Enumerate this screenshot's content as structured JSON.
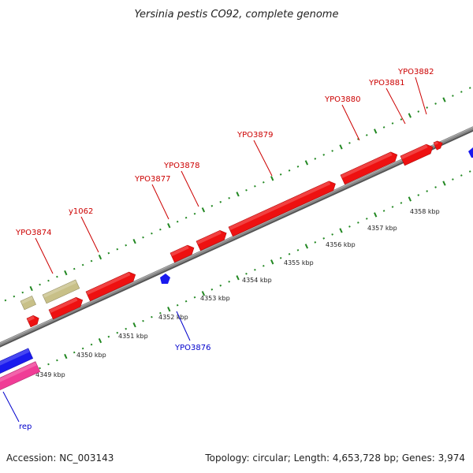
{
  "title": "Yersinia pestis CO92, complete genome",
  "footer": {
    "accession": "Accession: NC_003143",
    "summary": "Topology: circular; Length: 4,653,728 bp; Genes: 3,974"
  },
  "scale": {
    "unit": "kbp",
    "ticks": [
      "4349 kbp",
      "4350 kbp",
      "4351 kbp",
      "4352 kbp",
      "4353 kbp",
      "4354 kbp",
      "4355 kbp",
      "4356 kbp",
      "4357 kbp",
      "4358 kbp"
    ]
  },
  "colors": {
    "forward_gene": "#ee1111",
    "reverse_gene": "#1a1aee",
    "feature_tan": "#c8c088",
    "feature_pink": "#f03c96",
    "backbone": "#888888",
    "tick_marks": "#228822",
    "forward_label": "#cc0000",
    "reverse_label": "#0000cc"
  },
  "genes": [
    {
      "label": "YPO3874",
      "strand": "forward"
    },
    {
      "label": "y1062",
      "strand": "forward"
    },
    {
      "label": "YPO3876",
      "strand": "reverse"
    },
    {
      "label": "YPO3877",
      "strand": "forward"
    },
    {
      "label": "YPO3878",
      "strand": "forward"
    },
    {
      "label": "YPO3879",
      "strand": "forward"
    },
    {
      "label": "YPO3880",
      "strand": "forward"
    },
    {
      "label": "YPO3881",
      "strand": "forward"
    },
    {
      "label": "YPO3882",
      "strand": "forward"
    },
    {
      "label": "rep",
      "strand": "reverse"
    }
  ]
}
